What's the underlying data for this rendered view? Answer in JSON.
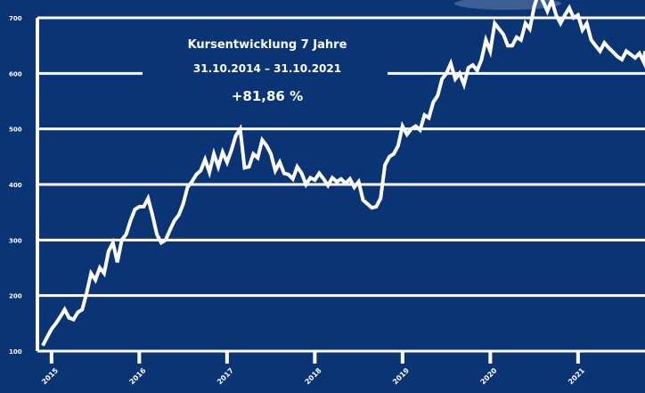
{
  "chart_data": {
    "type": "line",
    "title": "Kursentwicklung 7 Jahre",
    "subtitle": "31.10.2014 – 31.10.2021",
    "annotation": "+81,86 %",
    "grid": true,
    "ylim": [
      100,
      700
    ],
    "y_ticks": [
      "100",
      "200",
      "300",
      "400",
      "500",
      "600",
      "700"
    ],
    "x_ticks": [
      "2015",
      "2016",
      "2017",
      "2018",
      "2019",
      "2020",
      "2021"
    ],
    "xlim": [
      0,
      7.0
    ],
    "colors": {
      "background": "#0b3474",
      "line": "#ffffff"
    },
    "series": [
      {
        "x": [
          0.0,
          0.05,
          0.1,
          0.15,
          0.2,
          0.25,
          0.3,
          0.35,
          0.4,
          0.45,
          0.5,
          0.55,
          0.6,
          0.65,
          0.7,
          0.75,
          0.8,
          0.85,
          0.9,
          0.95,
          1.0,
          1.05,
          1.1,
          1.15,
          1.2,
          1.25,
          1.3,
          1.35,
          1.4,
          1.45,
          1.5,
          1.55,
          1.6,
          1.65,
          1.7,
          1.75,
          1.8,
          1.85,
          1.9,
          1.95,
          2.0,
          2.05,
          2.1,
          2.15,
          2.2,
          2.25,
          2.3,
          2.35,
          2.4,
          2.45,
          2.5,
          2.55,
          2.6,
          2.65,
          2.7,
          2.75,
          2.8,
          2.85,
          2.9,
          2.95,
          3.0,
          3.05,
          3.1,
          3.15,
          3.2,
          3.25,
          3.3,
          3.35,
          3.4,
          3.45,
          3.5,
          3.55,
          3.6,
          3.65,
          3.7,
          3.75,
          3.8,
          3.85,
          3.9,
          3.95,
          4.0,
          4.05,
          4.1,
          4.15,
          4.2,
          4.25,
          4.3,
          4.35,
          4.4,
          4.45,
          4.5,
          4.55,
          4.6,
          4.65,
          4.7,
          4.75,
          4.8,
          4.85,
          4.9,
          4.95,
          5.0,
          5.05,
          5.1,
          5.15,
          5.2,
          5.25,
          5.3,
          5.35,
          5.4,
          5.45,
          5.5,
          5.55,
          5.6,
          5.65,
          5.7,
          5.75,
          5.8,
          5.85,
          5.9,
          5.95,
          6.0,
          6.05,
          6.1,
          6.15,
          6.2,
          6.25,
          6.3,
          6.35,
          6.4,
          6.45,
          6.5,
          6.55,
          6.6,
          6.65,
          6.7,
          6.75,
          6.8,
          6.85,
          6.9,
          6.95,
          7.0
        ],
        "y": [
          110,
          125,
          140,
          150,
          162,
          175,
          160,
          157,
          170,
          175,
          205,
          240,
          228,
          250,
          240,
          280,
          295,
          260,
          300,
          310,
          335,
          355,
          360,
          360,
          375,
          345,
          310,
          295,
          300,
          318,
          335,
          345,
          365,
          395,
          405,
          418,
          425,
          445,
          422,
          455,
          432,
          458,
          440,
          462,
          488,
          500,
          430,
          432,
          455,
          448,
          480,
          470,
          455,
          425,
          440,
          420,
          418,
          410,
          432,
          420,
          400,
          412,
          408,
          420,
          410,
          398,
          412,
          405,
          410,
          402,
          410,
          395,
          405,
          372,
          365,
          358,
          360,
          375,
          435,
          450,
          455,
          470,
          505,
          490,
          500,
          505,
          498,
          525,
          520,
          548,
          560,
          590,
          600,
          618,
          590,
          600,
          580,
          610,
          615,
          605,
          625,
          660,
          640,
          690,
          680,
          670,
          650,
          650,
          665,
          660,
          690,
          680,
          720,
          745,
          730,
          712,
          732,
          705,
          690,
          705,
          718,
          700,
          705,
          678,
          690,
          660,
          650,
          640,
          655,
          646,
          638,
          630,
          625,
          640,
          634,
          628,
          636,
          620,
          640,
          615,
          640
        ]
      }
    ]
  }
}
